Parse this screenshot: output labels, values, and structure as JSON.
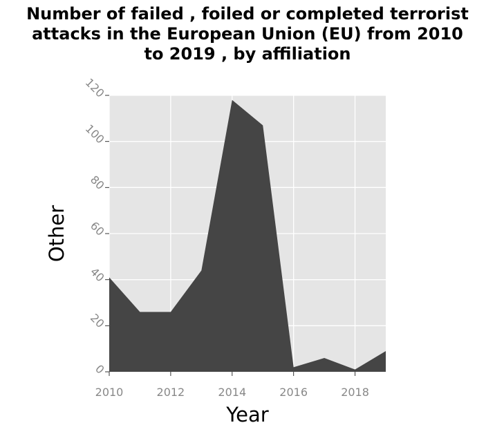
{
  "chart_data": {
    "type": "area",
    "title": "Number of failed , foiled or completed terrorist attacks in the European Union (EU) from 2010 to 2019 , by affiliation",
    "title_lines": [
      "Number of failed , foiled or completed terrorist",
      "attacks in the European Union (EU) from 2010",
      "to 2019 , by affiliation"
    ],
    "xlabel": "Year",
    "ylabel": "Other",
    "x": [
      2010,
      2011,
      2012,
      2013,
      2014,
      2015,
      2016,
      2017,
      2018,
      2019
    ],
    "values": [
      41,
      26,
      26,
      44,
      118,
      107,
      2,
      6,
      1,
      9
    ],
    "xlim": [
      2010,
      2019
    ],
    "ylim": [
      0,
      120
    ],
    "xticks": [
      2010,
      2012,
      2014,
      2016,
      2018
    ],
    "yticks": [
      0,
      20,
      40,
      60,
      80,
      100,
      120
    ],
    "grid": true,
    "colors": {
      "fill": "#454545",
      "panel": "#e5e5e5",
      "grid": "#ffffff",
      "tick_label": "#888888",
      "text": "#000000"
    }
  }
}
